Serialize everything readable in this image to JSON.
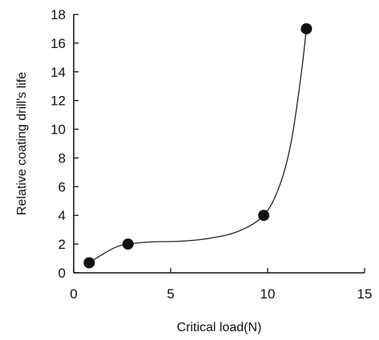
{
  "chart_data": {
    "type": "scatter",
    "xlabel": "Critical load(N)",
    "ylabel": "Relative coating drill's life",
    "xlim": [
      0,
      15
    ],
    "ylim": [
      0,
      18
    ],
    "xticks": [
      "0",
      "5",
      "10",
      "15"
    ],
    "yticks": [
      "0",
      "2",
      "4",
      "6",
      "8",
      "10",
      "12",
      "14",
      "16",
      "18"
    ],
    "grid": false,
    "legend": "none",
    "series": [
      {
        "points": [
          {
            "x": 0.8,
            "y": 0.7
          },
          {
            "x": 2.8,
            "y": 2.0
          },
          {
            "x": 9.8,
            "y": 4.0
          },
          {
            "x": 12.0,
            "y": 17.0
          }
        ]
      }
    ],
    "trend_curve": [
      {
        "x": 0.8,
        "y": 0.7
      },
      {
        "x": 1.5,
        "y": 1.3
      },
      {
        "x": 2.2,
        "y": 1.8
      },
      {
        "x": 2.8,
        "y": 2.0
      },
      {
        "x": 4.0,
        "y": 2.15
      },
      {
        "x": 5.5,
        "y": 2.2
      },
      {
        "x": 7.0,
        "y": 2.4
      },
      {
        "x": 8.5,
        "y": 2.9
      },
      {
        "x": 9.8,
        "y": 4.0
      },
      {
        "x": 10.6,
        "y": 6.0
      },
      {
        "x": 11.2,
        "y": 9.0
      },
      {
        "x": 11.7,
        "y": 13.5
      },
      {
        "x": 12.0,
        "y": 17.0
      }
    ],
    "colors": {
      "marker": "#111111",
      "axis": "#111111",
      "curve": "#222222"
    }
  }
}
